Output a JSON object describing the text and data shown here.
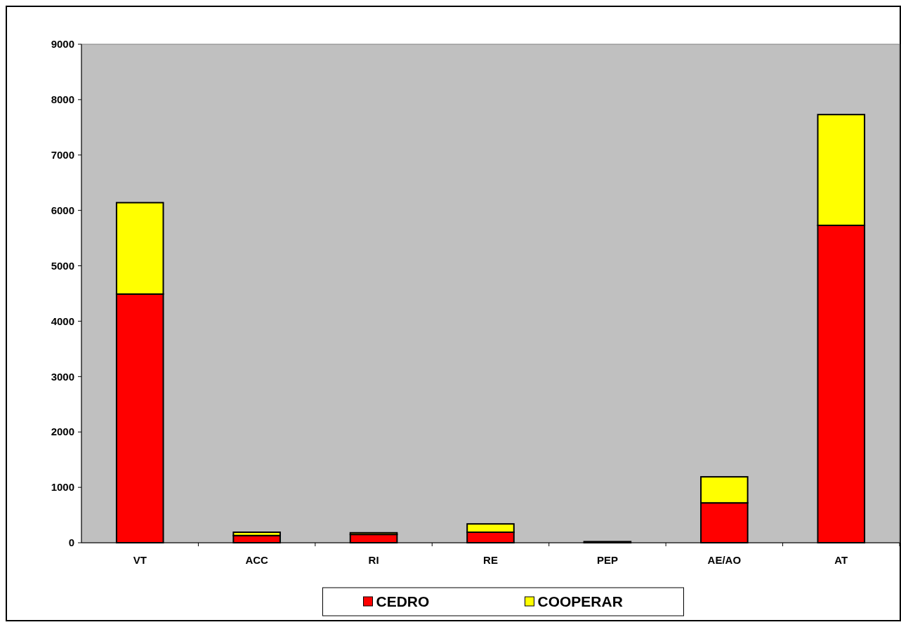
{
  "chart_data": {
    "type": "bar",
    "stacked": true,
    "categories": [
      "VT",
      "ACC",
      "RI",
      "RE",
      "PEP",
      "AE/AO",
      "AT"
    ],
    "series": [
      {
        "name": "CEDRO",
        "color": "#ff0000",
        "values": [
          4490,
          130,
          150,
          190,
          20,
          720,
          5730
        ]
      },
      {
        "name": "COOPERAR",
        "color": "#ffff00",
        "values": [
          1650,
          60,
          30,
          150,
          null,
          470,
          2000
        ]
      }
    ],
    "ylim": [
      0,
      9000
    ],
    "yticks": [
      0,
      1000,
      2000,
      3000,
      4000,
      5000,
      6000,
      7000,
      8000,
      9000
    ],
    "grid": false,
    "legend": "bottom"
  }
}
